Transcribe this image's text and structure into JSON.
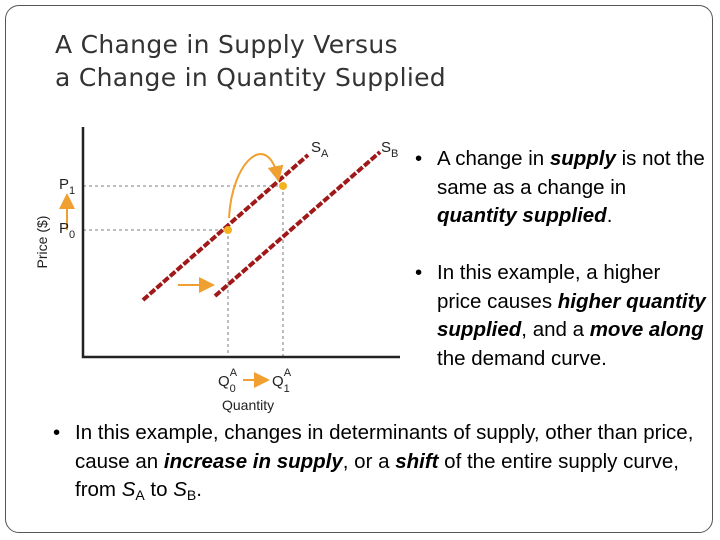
{
  "title": [
    "A Change in Supply Versus",
    "a Change in Quantity Supplied"
  ],
  "diagram": {
    "y_axis_label": "Price ($)",
    "x_axis_label": "Quantity",
    "p1": [
      "P",
      "1"
    ],
    "p0": [
      "P",
      "0"
    ],
    "sa": [
      "S",
      "A"
    ],
    "sb": [
      "S",
      "B"
    ],
    "q0": [
      "Q",
      "0",
      "A"
    ],
    "q1": [
      "Q",
      "1",
      "A"
    ]
  },
  "bullets": [
    [
      "A change in ",
      "supply",
      " is not the same as a change in ",
      "quantity supplied",
      "."
    ],
    [
      "In this example, a higher price causes ",
      "higher quantity supplied",
      ", and a ",
      "move along",
      " the demand curve."
    ],
    [
      "In this example, changes in determinants of supply, other than price, cause an ",
      "increase in supply",
      ", or a ",
      "shift",
      " of the entire supply curve, from ",
      "S",
      "A",
      " to ",
      "S",
      "B",
      "."
    ]
  ]
}
